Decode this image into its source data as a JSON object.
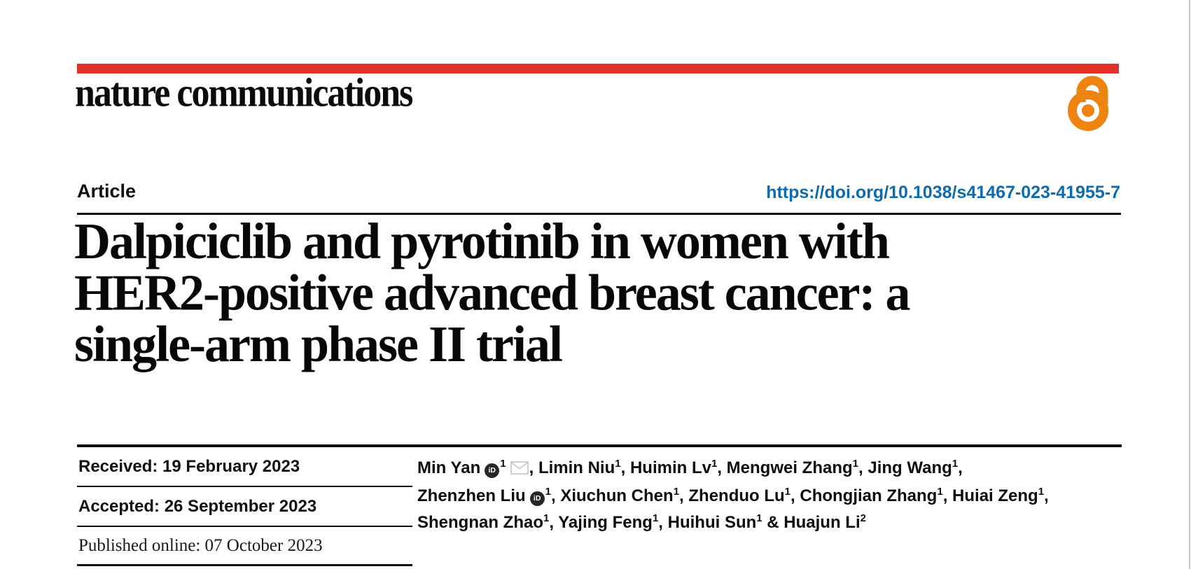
{
  "journal": {
    "name": "nature communications"
  },
  "colors": {
    "accent_red": "#e23127",
    "doi_blue": "#0d6bb0",
    "open_access_orange": "#ef8310",
    "envelope_grey": "#c5c5c5"
  },
  "icons": {
    "open_access": "open-padlock",
    "orcid_glyph": "iD",
    "email": "envelope"
  },
  "article": {
    "type_label": "Article",
    "doi": "https://doi.org/10.1038/s41467-023-41955-7",
    "title_lines": [
      "Dalpiciclib and pyrotinib in women with",
      "HER2-positive advanced breast cancer: a",
      "single-arm phase II trial"
    ]
  },
  "dates": [
    {
      "text": "Received: 19 February 2023"
    },
    {
      "text": "Accepted: 26 September 2023"
    },
    {
      "text": "Published online: 07 October 2023"
    }
  ],
  "authors": {
    "list": [
      {
        "name": "Min Yan",
        "sup": "1",
        "orcid": true,
        "email": true,
        "sep": ", "
      },
      {
        "name": "Limin Niu",
        "sup": "1",
        "sep": ", "
      },
      {
        "name": "Huimin Lv",
        "sup": "1",
        "sep": ", "
      },
      {
        "name": "Mengwei Zhang",
        "sup": "1",
        "sep": ", "
      },
      {
        "name": "Jing Wang",
        "sup": "1",
        "sep": ",",
        "break_after": true
      },
      {
        "name": "Zhenzhen Liu",
        "sup": "1",
        "orcid": true,
        "sep": ", "
      },
      {
        "name": "Xiuchun Chen",
        "sup": "1",
        "sep": ", "
      },
      {
        "name": "Zhenduo Lu",
        "sup": "1",
        "sep": ", "
      },
      {
        "name": "Chongjian Zhang",
        "sup": "1",
        "sep": ", "
      },
      {
        "name": "Huiai Zeng",
        "sup": "1",
        "sep": ",",
        "break_after": true
      },
      {
        "name": "Shengnan Zhao",
        "sup": "1",
        "sep": ", "
      },
      {
        "name": "Yajing Feng",
        "sup": "1",
        "sep": ", "
      },
      {
        "name": "Huihui Sun",
        "sup": "1",
        "sep": " & "
      },
      {
        "name": "Huajun Li",
        "sup": "2",
        "sep": ""
      }
    ]
  }
}
